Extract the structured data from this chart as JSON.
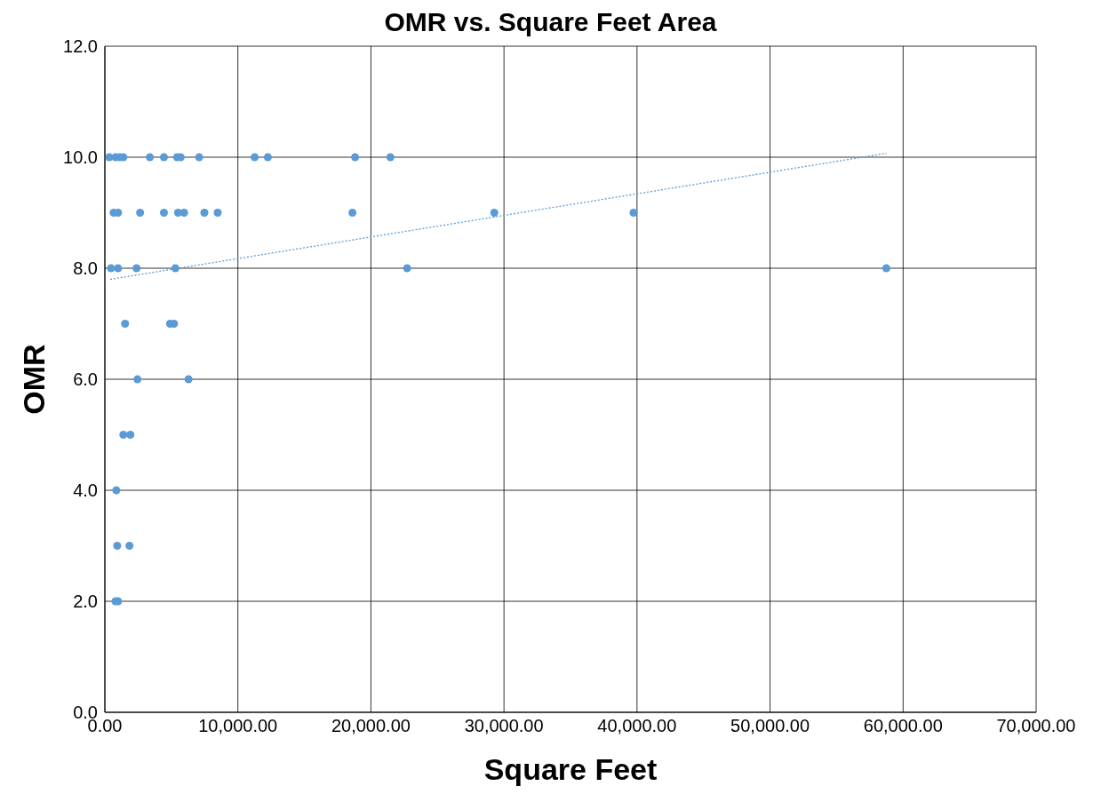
{
  "chart_data": {
    "type": "scatter",
    "title": "OMR vs. Square Feet Area",
    "xlabel": "Square Feet",
    "ylabel": "OMR",
    "series": [
      {
        "color": "#5b9bd5",
        "x": [
          330,
          800,
          1130,
          1390,
          3380,
          4440,
          5430,
          5700,
          7090,
          11260,
          12250,
          18810,
          21460,
          660,
          990,
          2650,
          4440,
          5500,
          5960,
          7480,
          8480,
          18610,
          29270,
          39740,
          460,
          990,
          2380,
          5300,
          22720,
          58740,
          1520,
          4900,
          5200,
          2450,
          6290,
          1390,
          1920,
          860,
          930,
          1850,
          800,
          990
        ],
        "values": [
          10,
          10,
          10,
          10,
          10,
          10,
          10,
          10,
          10,
          10,
          10,
          10,
          10,
          9,
          9,
          9,
          9,
          9,
          9,
          9,
          9,
          9,
          9,
          9,
          8,
          8,
          8,
          8,
          8,
          8,
          7,
          7,
          7,
          6,
          6,
          5,
          5,
          4,
          3,
          3,
          2,
          2
        ]
      },
      {
        "type": "line",
        "color": "#5b9bd5",
        "line_style": "dotted",
        "marker": "none",
        "x": [
          400,
          58740
        ],
        "values": [
          7.8,
          10.07
        ]
      }
    ],
    "xlim": [
      0,
      70000
    ],
    "xticks": [
      {
        "value": 0,
        "label": "0.00"
      },
      {
        "value": 10000,
        "label": "10,000.00"
      },
      {
        "value": 20000,
        "label": "20,000.00"
      },
      {
        "value": 30000,
        "label": "30,000.00"
      },
      {
        "value": 40000,
        "label": "40,000.00"
      },
      {
        "value": 50000,
        "label": "50,000.00"
      },
      {
        "value": 60000,
        "label": "60,000.00"
      },
      {
        "value": 70000,
        "label": "70,000.00"
      }
    ],
    "ylim": [
      0,
      12
    ],
    "yticks": [
      {
        "value": 0,
        "label": "0.0"
      },
      {
        "value": 2,
        "label": "2.0"
      },
      {
        "value": 4,
        "label": "4.0"
      },
      {
        "value": 6,
        "label": "6.0"
      },
      {
        "value": 8,
        "label": "8.0"
      },
      {
        "value": 10,
        "label": "10.0"
      },
      {
        "value": 12,
        "label": "12.0"
      }
    ],
    "grid": true,
    "marker": "circle",
    "legend": false
  }
}
